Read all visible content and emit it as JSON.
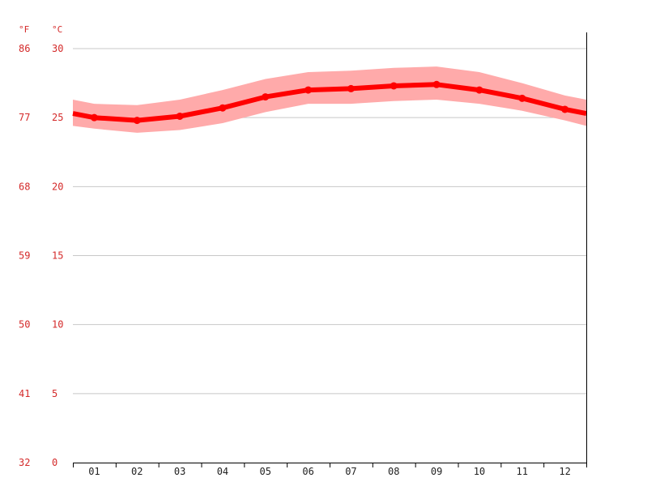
{
  "chart_data": {
    "type": "line",
    "units": {
      "fahrenheit": "°F",
      "celsius": "°C"
    },
    "categories": [
      "01",
      "02",
      "03",
      "04",
      "05",
      "06",
      "07",
      "08",
      "09",
      "10",
      "11",
      "12"
    ],
    "y_ticks_celsius": [
      "30",
      "25",
      "20",
      "15",
      "10",
      "5",
      "0"
    ],
    "y_ticks_fahrenheit": [
      "86",
      "77",
      "68",
      "59",
      "50",
      "41",
      "32"
    ],
    "ylim": [
      0,
      30
    ],
    "grid": true,
    "series": [
      {
        "values": [
          25.0,
          24.8,
          25.1,
          25.7,
          26.5,
          27.0,
          27.1,
          27.3,
          27.4,
          27.0,
          26.4,
          25.6
        ],
        "band_high": [
          26.0,
          25.9,
          26.3,
          27.0,
          27.8,
          28.3,
          28.4,
          28.6,
          28.7,
          28.3,
          27.5,
          26.6
        ],
        "band_low": [
          24.2,
          23.9,
          24.1,
          24.6,
          25.4,
          26.0,
          26.0,
          26.2,
          26.3,
          26.0,
          25.5,
          24.8
        ],
        "edge_start": {
          "value": 25.3,
          "high": 26.3,
          "low": 24.4
        },
        "edge_end": {
          "value": 25.3,
          "high": 26.3,
          "low": 24.4
        }
      }
    ],
    "colors": {
      "line": "#ff0000",
      "band": "#ffaaaa",
      "text": "#d42a2a"
    }
  }
}
